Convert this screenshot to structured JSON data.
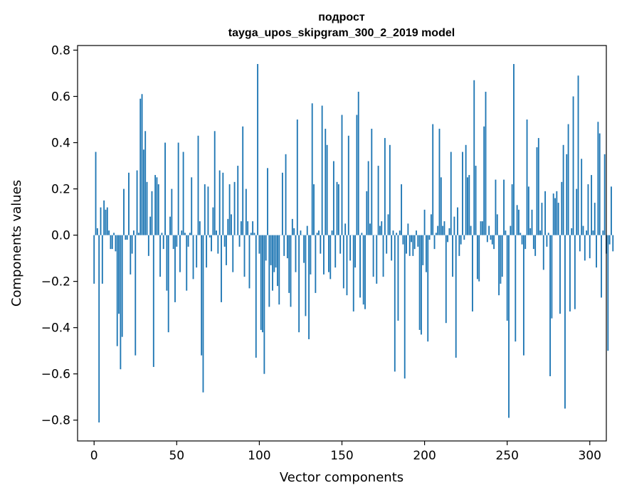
{
  "chart_data": {
    "type": "bar",
    "title_line1": "подрост",
    "title_line2": "tayga_upos_skipgram_300_2_2019 model",
    "xlabel": "Vector components",
    "ylabel": "Components values",
    "xlim": [
      -10,
      310
    ],
    "ylim": [
      -0.89,
      0.82
    ],
    "x_ticks": [
      0,
      50,
      100,
      150,
      200,
      250,
      300
    ],
    "x_tick_labels": [
      "0",
      "50",
      "100",
      "150",
      "200",
      "250",
      "300"
    ],
    "y_ticks": [
      -0.8,
      -0.6,
      -0.4,
      -0.2,
      0.0,
      0.2,
      0.4,
      0.6,
      0.8
    ],
    "y_tick_labels": [
      "−0.8",
      "−0.6",
      "−0.4",
      "−0.2",
      "0.0",
      "0.2",
      "0.4",
      "0.6",
      "0.8"
    ],
    "bar_color": "#1f77b4",
    "values": [
      -0.21,
      0.36,
      0.03,
      -0.81,
      0.12,
      -0.21,
      0.15,
      0.11,
      0.12,
      0.02,
      -0.06,
      -0.06,
      0.01,
      -0.07,
      -0.48,
      -0.34,
      -0.58,
      -0.44,
      0.2,
      -0.02,
      -0.02,
      0.27,
      -0.17,
      -0.08,
      0.02,
      -0.52,
      0.28,
      0.01,
      0.59,
      0.61,
      0.37,
      0.45,
      0.23,
      -0.09,
      0.08,
      0.19,
      -0.57,
      0.26,
      0.25,
      0.22,
      -0.18,
      0.01,
      -0.06,
      0.4,
      -0.24,
      -0.42,
      0.08,
      0.2,
      -0.06,
      -0.29,
      -0.05,
      0.4,
      -0.16,
      0.02,
      0.36,
      0.01,
      -0.24,
      -0.05,
      0.01,
      0.25,
      -0.19,
      0.0,
      -0.14,
      0.43,
      0.06,
      -0.52,
      -0.68,
      0.22,
      -0.14,
      0.21,
      -0.01,
      -0.07,
      0.12,
      0.45,
      0.02,
      -0.08,
      0.28,
      -0.29,
      0.27,
      -0.05,
      -0.13,
      0.07,
      0.22,
      0.09,
      -0.16,
      0.23,
      0.0,
      0.3,
      -0.05,
      0.06,
      0.47,
      -0.18,
      0.2,
      0.06,
      -0.23,
      0.01,
      0.06,
      0.01,
      -0.53,
      0.74,
      -0.08,
      -0.41,
      -0.42,
      -0.6,
      -0.11,
      0.29,
      -0.31,
      -0.13,
      -0.24,
      -0.16,
      -0.14,
      -0.22,
      -0.3,
      0.0,
      0.27,
      -0.09,
      0.35,
      -0.1,
      -0.25,
      -0.31,
      0.07,
      0.03,
      -0.16,
      0.5,
      -0.42,
      0.02,
      0.0,
      -0.12,
      -0.35,
      0.04,
      -0.45,
      -0.17,
      0.57,
      0.22,
      -0.25,
      0.01,
      0.02,
      -0.08,
      0.56,
      -0.17,
      0.46,
      0.39,
      -0.16,
      -0.19,
      0.02,
      0.32,
      -0.14,
      0.23,
      0.22,
      -0.08,
      0.52,
      -0.23,
      0.05,
      -0.26,
      0.43,
      -0.11,
      0.0,
      -0.33,
      -0.14,
      0.52,
      0.62,
      -0.27,
      0.01,
      -0.3,
      -0.32,
      0.19,
      0.32,
      0.05,
      0.46,
      -0.18,
      0.0,
      -0.21,
      0.3,
      0.04,
      0.06,
      -0.18,
      0.42,
      -0.08,
      0.09,
      0.39,
      -0.11,
      0.02,
      -0.59,
      0.01,
      -0.37,
      0.02,
      0.22,
      -0.04,
      -0.62,
      -0.08,
      0.05,
      -0.09,
      -0.03,
      -0.09,
      -0.06,
      0.02,
      -0.05,
      -0.41,
      -0.43,
      -0.13,
      0.11,
      -0.16,
      -0.46,
      -0.02,
      0.09,
      0.48,
      -0.06,
      0.01,
      0.04,
      0.46,
      0.25,
      0.04,
      0.06,
      -0.38,
      -0.03,
      0.03,
      0.36,
      -0.18,
      0.08,
      -0.53,
      0.12,
      -0.09,
      -0.04,
      0.36,
      -0.02,
      0.39,
      0.25,
      0.26,
      0.04,
      -0.33,
      0.67,
      0.3,
      -0.19,
      -0.2,
      0.06,
      0.06,
      0.47,
      0.62,
      -0.03,
      0.04,
      -0.02,
      -0.04,
      -0.06,
      0.24,
      0.09,
      -0.26,
      -0.21,
      -0.18,
      0.24,
      0.02,
      -0.37,
      -0.79,
      0.04,
      0.22,
      0.74,
      -0.46,
      0.13,
      0.11,
      0.01,
      -0.04,
      -0.52,
      -0.06,
      0.5,
      0.21,
      0.03,
      0.11,
      -0.06,
      -0.09,
      0.38,
      0.42,
      0.02,
      0.14,
      -0.15,
      0.19,
      -0.05,
      0.01,
      -0.61,
      -0.36,
      0.18,
      0.16,
      0.19,
      0.14,
      -0.34,
      0.23,
      0.39,
      -0.75,
      0.35,
      0.48,
      -0.33,
      0.03,
      0.6,
      -0.32,
      0.2,
      0.69,
      -0.07,
      0.33,
      0.04,
      -0.11,
      0.02,
      0.22,
      -0.1,
      0.26,
      0.02,
      0.14,
      -0.14,
      0.49,
      0.44,
      -0.27,
      0.02,
      0.35,
      -0.08,
      -0.5,
      -0.04,
      0.21,
      -0.07
    ]
  }
}
